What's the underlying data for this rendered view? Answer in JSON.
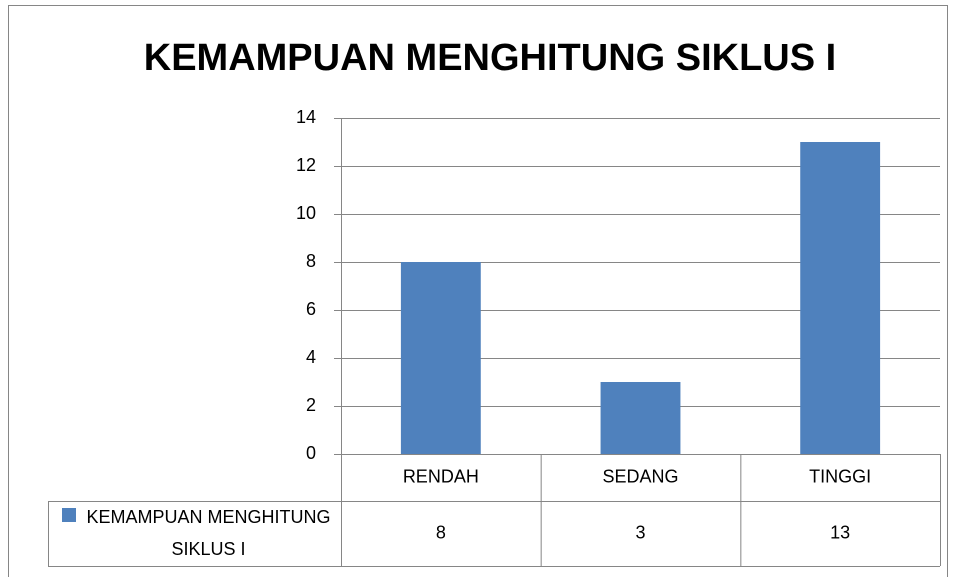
{
  "chart_data": {
    "type": "bar",
    "title": "KEMAMPUAN MENGHITUNG SIKLUS I",
    "categories": [
      "RENDAH",
      "SEDANG",
      "TINGGI"
    ],
    "series": [
      {
        "name": "KEMAMPUAN MENGHITUNG SIKLUS I",
        "color": "#4f81bd",
        "values": [
          8,
          3,
          13
        ]
      }
    ],
    "ylim": [
      0,
      14
    ],
    "yticks": [
      0,
      2,
      4,
      6,
      8,
      10,
      12,
      14
    ],
    "grid": true,
    "legend": "data-table"
  }
}
